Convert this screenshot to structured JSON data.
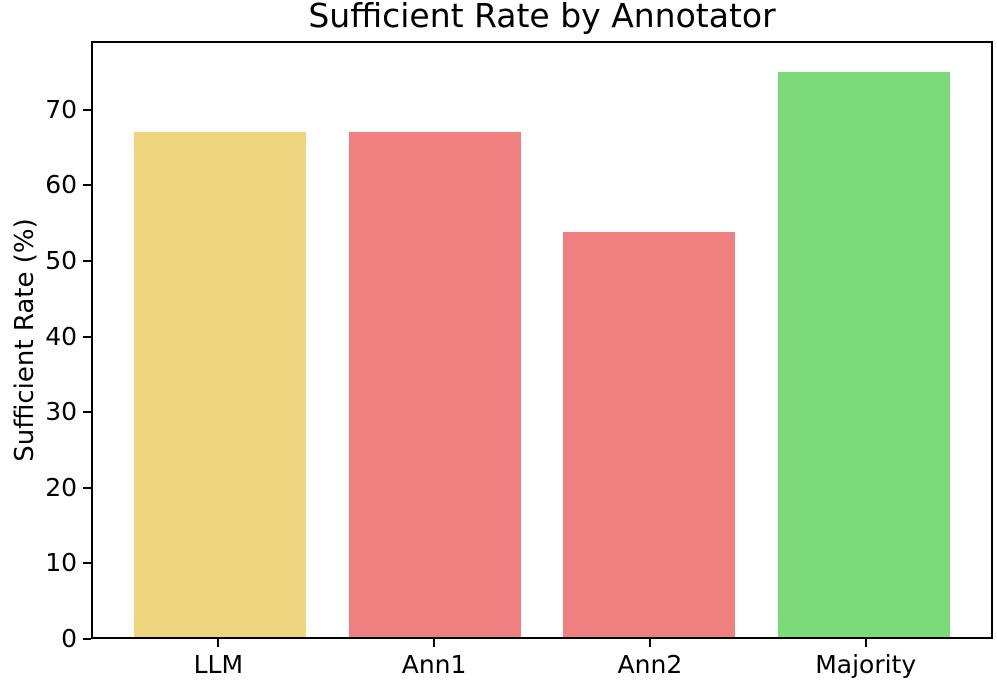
{
  "figure": {
    "background_color": "#FFFFFF",
    "axis_color": "#000000",
    "text_color": "#000000"
  },
  "chart_data": {
    "type": "bar",
    "title": "Sufficient Rate by Annotator",
    "xlabel": "",
    "ylabel": "Sufficient Rate (%)",
    "categories": [
      "LLM",
      "Ann1",
      "Ann2",
      "Majority"
    ],
    "values": [
      67.3,
      67.3,
      54.0,
      75.3
    ],
    "bar_colors": [
      "#EED57E",
      "#F08080",
      "#F08080",
      "#7CDB78"
    ],
    "yticks": [
      0,
      10,
      20,
      30,
      40,
      50,
      60,
      70
    ],
    "ylim": [
      0,
      79.1
    ],
    "grid": false,
    "legend": null
  }
}
